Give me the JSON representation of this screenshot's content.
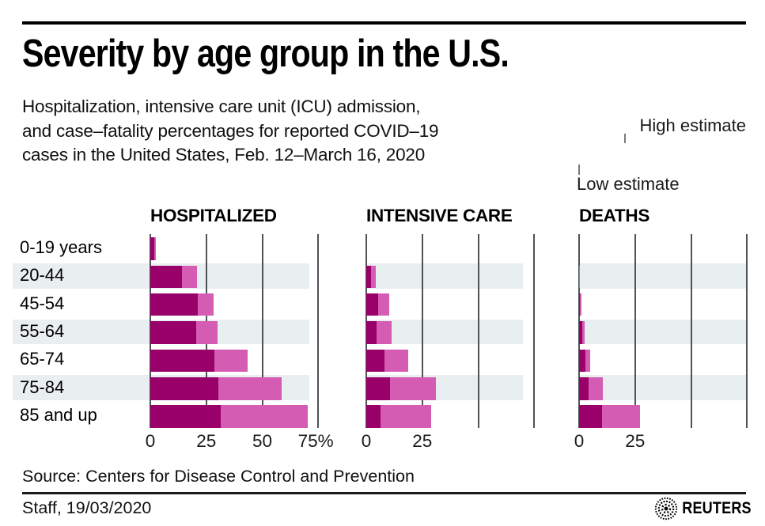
{
  "header": {
    "title": "Severity by age group in the U.S.",
    "subtitle": "Hospitalization, intensive care unit (ICU) admission,\nand case–fatality percentages for reported COVID–19\ncases in the United States, Feb. 12–March 16, 2020"
  },
  "legend": {
    "high_label": "High estimate",
    "low_label": "Low estimate"
  },
  "chart_data": {
    "type": "bar",
    "orientation": "horizontal",
    "unit": "percent of reported cases",
    "categories": [
      "0-19 years",
      "20-44",
      "45-54",
      "55-64",
      "65-74",
      "75-84",
      "85 and up"
    ],
    "xlim": [
      0,
      75
    ],
    "grid": true,
    "striped_rows": [
      1,
      3,
      5
    ],
    "stripe_color": "#e9eef0",
    "gridline_color": "#4e5357",
    "colors": {
      "low": "#990069",
      "high": "#d45cb2"
    },
    "panels": [
      {
        "label": "HOSPITALIZED",
        "axis_ticks": [
          0,
          25,
          50,
          75
        ],
        "axis_tick_labels": [
          "0",
          "25",
          "50",
          "75%"
        ],
        "series": [
          {
            "name": "Low estimate",
            "values": [
              1.6,
              14.3,
              21.2,
              20.5,
              28.6,
              30.5,
              31.3
            ]
          },
          {
            "name": "High estimate",
            "values": [
              2.5,
              20.8,
              28.3,
              30.1,
              43.5,
              58.7,
              70.3
            ]
          }
        ]
      },
      {
        "label": "INTENSIVE CARE",
        "axis_ticks": [
          0,
          25,
          50,
          75
        ],
        "axis_tick_labels": [
          "0",
          "25"
        ],
        "series": [
          {
            "name": "Low estimate",
            "values": [
              0,
              2.0,
              5.4,
              4.7,
              8.1,
              10.5,
              6.3
            ]
          },
          {
            "name": "High estimate",
            "values": [
              0,
              4.2,
              10.4,
              11.2,
              18.8,
              31.0,
              29.0
            ]
          }
        ]
      },
      {
        "label": "DEATHS",
        "axis_ticks": [
          0,
          25,
          50,
          75
        ],
        "axis_tick_labels": [
          "0",
          "25"
        ],
        "series": [
          {
            "name": "Low estimate",
            "values": [
              0,
              0.1,
              0.5,
              1.4,
              2.7,
              4.3,
              10.4
            ]
          },
          {
            "name": "High estimate",
            "values": [
              0,
              0.2,
              0.8,
              2.6,
              4.9,
              10.5,
              27.3
            ]
          }
        ]
      }
    ]
  },
  "footer": {
    "source": "Source: Centers for Disease Control and Prevention",
    "byline": "Staff, 19/03/2020",
    "brand": "REUTERS"
  }
}
